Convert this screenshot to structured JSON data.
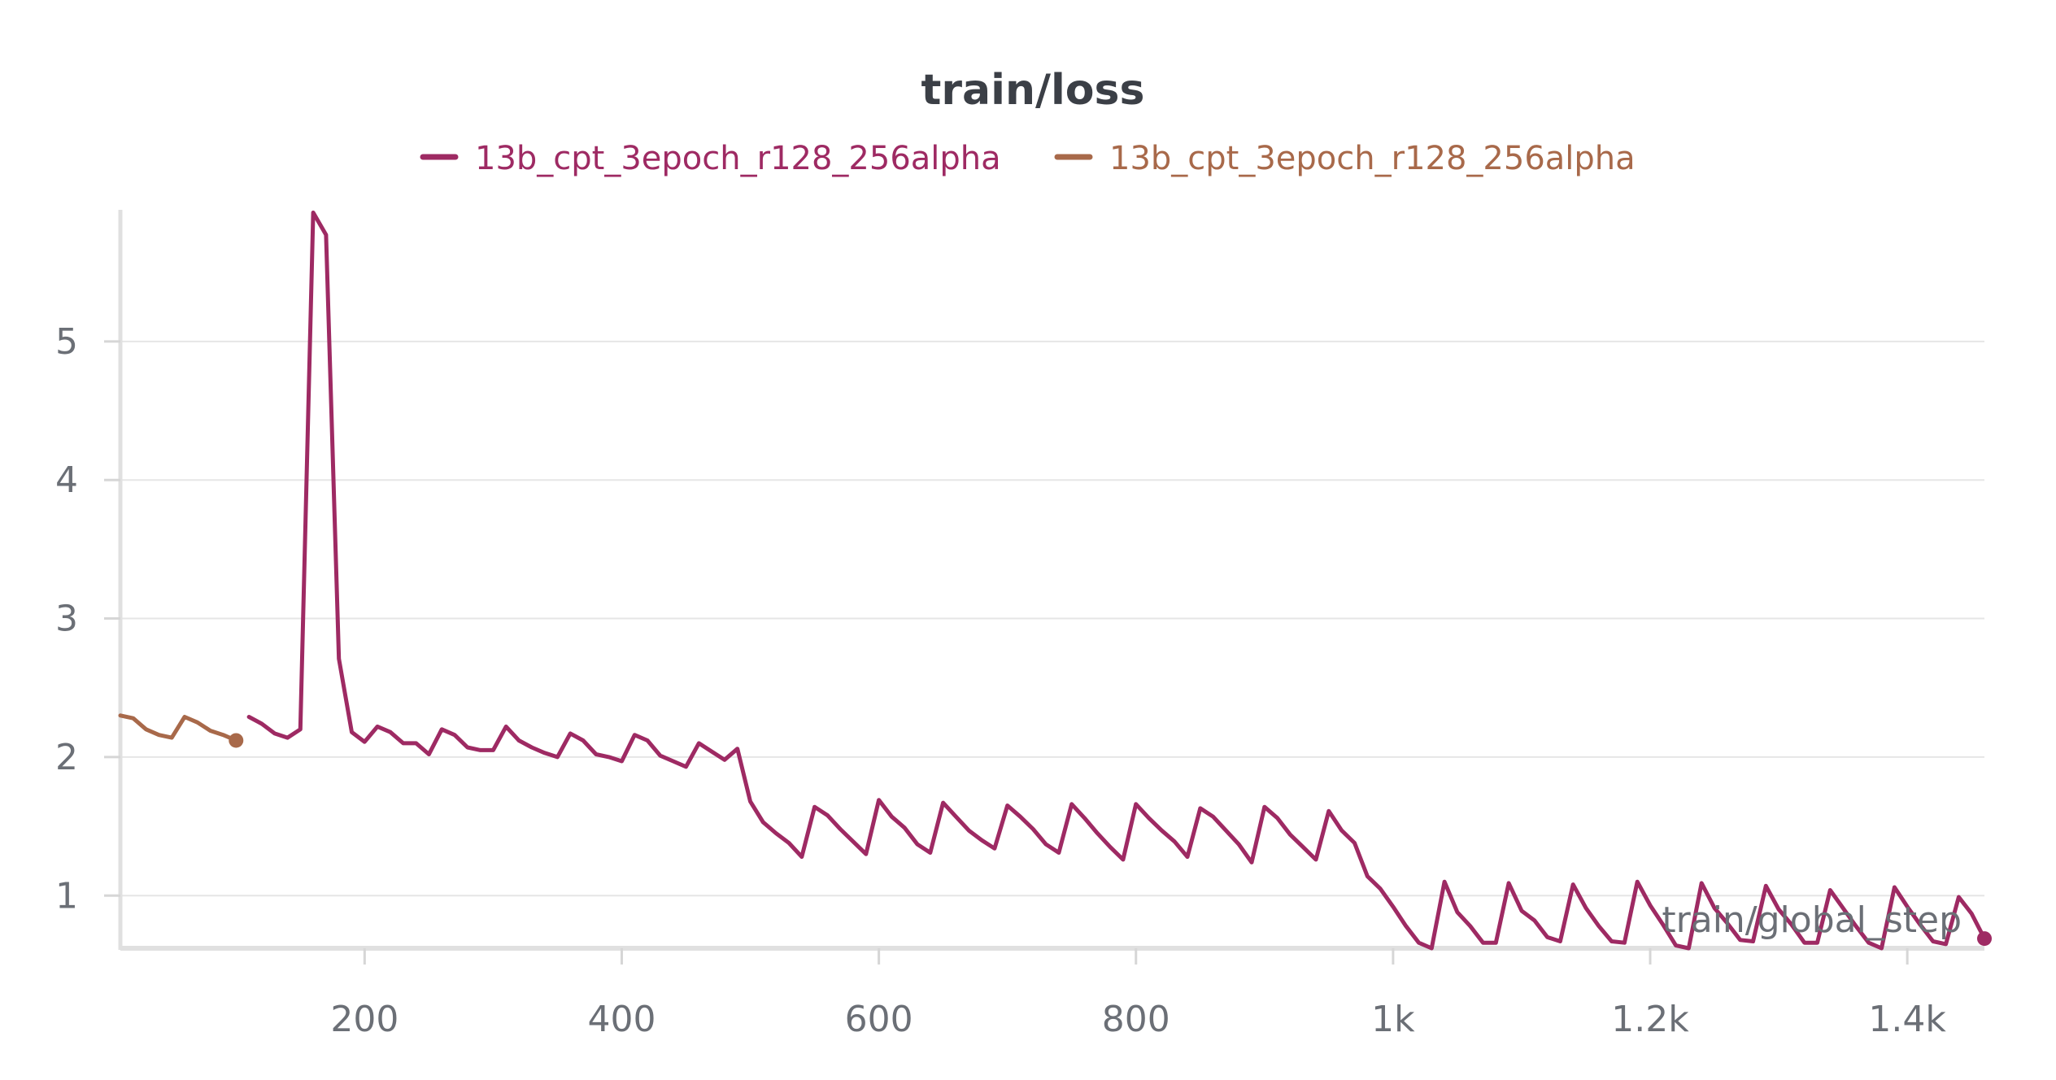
{
  "chart_data": {
    "type": "line",
    "title": "train/loss",
    "xlabel": "train/global_step",
    "ylabel": "",
    "xlim": [
      10,
      1460
    ],
    "ylim": [
      0.62,
      5.95
    ],
    "x_ticks": [
      200,
      400,
      600,
      800,
      1000,
      1200,
      1400
    ],
    "x_tick_labels": [
      "200",
      "400",
      "600",
      "800",
      "1k",
      "1.2k",
      "1.4k"
    ],
    "y_ticks": [
      1,
      2,
      3,
      4,
      5
    ],
    "y_tick_labels": [
      "1",
      "2",
      "3",
      "4",
      "5"
    ],
    "grid": true,
    "legend_position": "top-center",
    "series": [
      {
        "name": "13b_cpt_3epoch_r128_256alpha",
        "color": "#9e2a63",
        "x": [
          110,
          120,
          130,
          140,
          150,
          160,
          170,
          180,
          190,
          200,
          210,
          220,
          230,
          240,
          250,
          260,
          270,
          280,
          290,
          300,
          310,
          320,
          330,
          340,
          350,
          360,
          370,
          380,
          390,
          400,
          410,
          420,
          430,
          440,
          450,
          460,
          470,
          480,
          490,
          500,
          510,
          520,
          530,
          540,
          550,
          560,
          570,
          580,
          590,
          600,
          610,
          620,
          630,
          640,
          650,
          660,
          670,
          680,
          690,
          700,
          710,
          720,
          730,
          740,
          750,
          760,
          770,
          780,
          790,
          800,
          810,
          820,
          830,
          840,
          850,
          860,
          870,
          880,
          890,
          900,
          910,
          920,
          930,
          940,
          950,
          960,
          970,
          980,
          990,
          1000,
          1010,
          1020,
          1030,
          1040,
          1050,
          1060,
          1070,
          1080,
          1090,
          1100,
          1110,
          1120,
          1130,
          1140,
          1150,
          1160,
          1170,
          1180,
          1190,
          1200,
          1210,
          1220,
          1230,
          1240,
          1250,
          1260,
          1270,
          1280,
          1290,
          1300,
          1310,
          1320,
          1330,
          1340,
          1350,
          1360,
          1370,
          1380,
          1390,
          1400,
          1410,
          1420,
          1430,
          1440,
          1450,
          1460
        ],
        "values": [
          2.29,
          2.24,
          2.17,
          2.14,
          2.2,
          5.93,
          5.77,
          2.71,
          2.18,
          2.11,
          2.22,
          2.18,
          2.1,
          2.1,
          2.02,
          2.2,
          2.16,
          2.07,
          2.05,
          2.05,
          2.22,
          2.12,
          2.07,
          2.03,
          2.0,
          2.17,
          2.12,
          2.02,
          2.0,
          1.97,
          2.16,
          2.12,
          2.01,
          1.97,
          1.93,
          2.1,
          2.04,
          1.98,
          2.06,
          1.68,
          1.53,
          1.45,
          1.38,
          1.28,
          1.64,
          1.58,
          1.48,
          1.39,
          1.3,
          1.69,
          1.57,
          1.49,
          1.37,
          1.31,
          1.67,
          1.57,
          1.47,
          1.4,
          1.34,
          1.65,
          1.57,
          1.48,
          1.37,
          1.31,
          1.66,
          1.56,
          1.45,
          1.35,
          1.26,
          1.66,
          1.56,
          1.47,
          1.39,
          1.28,
          1.63,
          1.57,
          1.47,
          1.37,
          1.24,
          1.64,
          1.56,
          1.44,
          1.35,
          1.26,
          1.61,
          1.47,
          1.38,
          1.14,
          1.05,
          0.92,
          0.78,
          0.66,
          0.62,
          1.1,
          0.88,
          0.78,
          0.66,
          0.66,
          1.09,
          0.89,
          0.82,
          0.7,
          0.67,
          1.08,
          0.91,
          0.78,
          0.67,
          0.66,
          1.1,
          0.93,
          0.79,
          0.64,
          0.62,
          1.09,
          0.91,
          0.8,
          0.68,
          0.67,
          1.07,
          0.9,
          0.79,
          0.66,
          0.66,
          1.04,
          0.91,
          0.78,
          0.66,
          0.62,
          1.06,
          0.92,
          0.79,
          0.67,
          0.65,
          0.99,
          0.87,
          0.69
        ]
      },
      {
        "name": "13b_cpt_3epoch_r128_256alpha",
        "color": "#a8694a",
        "x": [
          10,
          20,
          30,
          40,
          50,
          60,
          70,
          80,
          90,
          100
        ],
        "values": [
          2.3,
          2.28,
          2.2,
          2.16,
          2.14,
          2.29,
          2.25,
          2.19,
          2.16,
          2.12
        ]
      }
    ]
  }
}
